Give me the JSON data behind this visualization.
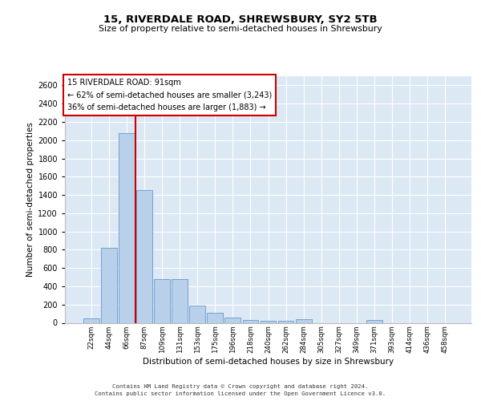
{
  "title1": "15, RIVERDALE ROAD, SHREWSBURY, SY2 5TB",
  "title2": "Size of property relative to semi-detached houses in Shrewsbury",
  "xlabel": "Distribution of semi-detached houses by size in Shrewsbury",
  "ylabel": "Number of semi-detached properties",
  "footer1": "Contains HM Land Registry data © Crown copyright and database right 2024.",
  "footer2": "Contains public sector information licensed under the Open Government Licence v3.0.",
  "annotation_line1": "15 RIVERDALE ROAD: 91sqm",
  "annotation_line2": "← 62% of semi-detached houses are smaller (3,243)",
  "annotation_line3": "36% of semi-detached houses are larger (1,883) →",
  "bar_labels": [
    "22sqm",
    "44sqm",
    "66sqm",
    "87sqm",
    "109sqm",
    "131sqm",
    "153sqm",
    "175sqm",
    "196sqm",
    "218sqm",
    "240sqm",
    "262sqm",
    "284sqm",
    "305sqm",
    "327sqm",
    "349sqm",
    "371sqm",
    "393sqm",
    "414sqm",
    "436sqm",
    "458sqm"
  ],
  "bar_values": [
    50,
    820,
    2080,
    1450,
    480,
    480,
    185,
    110,
    60,
    35,
    25,
    20,
    40,
    0,
    0,
    0,
    30,
    0,
    0,
    0,
    0
  ],
  "bar_color": "#b8d0ea",
  "bar_edge_color": "#6699cc",
  "vline_color": "#cc0000",
  "vline_x_idx": 2,
  "annotation_box_color": "#ffffff",
  "annotation_box_edge": "#cc0000",
  "bg_color": "#dde8f5",
  "ylim": [
    0,
    2700
  ],
  "yticks": [
    0,
    200,
    400,
    600,
    800,
    1000,
    1200,
    1400,
    1600,
    1800,
    2000,
    2200,
    2400,
    2600
  ]
}
